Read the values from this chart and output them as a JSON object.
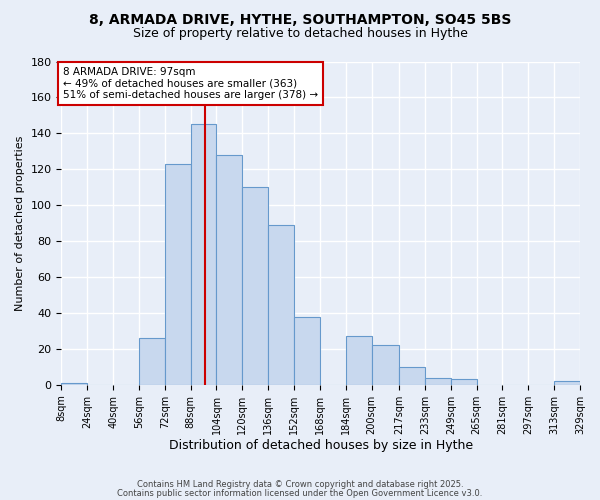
{
  "title_line1": "8, ARMADA DRIVE, HYTHE, SOUTHAMPTON, SO45 5BS",
  "title_line2": "Size of property relative to detached houses in Hythe",
  "xlabel": "Distribution of detached houses by size in Hythe",
  "ylabel": "Number of detached properties",
  "bar_color": "#c8d8ee",
  "bar_edge_color": "#6699cc",
  "background_color": "#e8eef8",
  "grid_color": "#ffffff",
  "bin_edges": [
    8,
    24,
    40,
    56,
    72,
    88,
    104,
    120,
    136,
    152,
    168,
    184,
    200,
    217,
    233,
    249,
    265,
    281,
    297,
    313,
    329
  ],
  "bar_heights": [
    1,
    0,
    0,
    26,
    123,
    145,
    128,
    110,
    89,
    38,
    0,
    27,
    22,
    10,
    4,
    3,
    0,
    0,
    0,
    2
  ],
  "tick_labels": [
    "8sqm",
    "24sqm",
    "40sqm",
    "56sqm",
    "72sqm",
    "88sqm",
    "104sqm",
    "120sqm",
    "136sqm",
    "152sqm",
    "168sqm",
    "184sqm",
    "200sqm",
    "217sqm",
    "233sqm",
    "249sqm",
    "265sqm",
    "281sqm",
    "297sqm",
    "313sqm",
    "329sqm"
  ],
  "ylim": [
    0,
    180
  ],
  "yticks": [
    0,
    20,
    40,
    60,
    80,
    100,
    120,
    140,
    160,
    180
  ],
  "vline_x": 97,
  "vline_color": "#cc0000",
  "annotation_title": "8 ARMADA DRIVE: 97sqm",
  "annotation_line1": "← 49% of detached houses are smaller (363)",
  "annotation_line2": "51% of semi-detached houses are larger (378) →",
  "annotation_box_color": "#ffffff",
  "annotation_box_edge_color": "#cc0000",
  "footer_line1": "Contains HM Land Registry data © Crown copyright and database right 2025.",
  "footer_line2": "Contains public sector information licensed under the Open Government Licence v3.0."
}
